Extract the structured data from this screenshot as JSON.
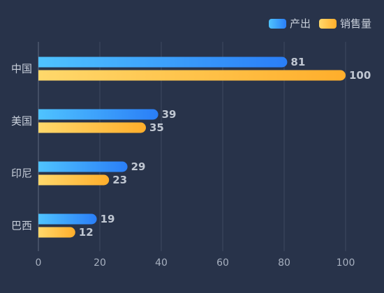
{
  "chart_data": {
    "type": "bar",
    "orientation": "horizontal",
    "categories": [
      "中国",
      "美国",
      "印尼",
      "巴西"
    ],
    "series": [
      {
        "name": "产出",
        "values": [
          81,
          39,
          29,
          19
        ],
        "gradient": [
          "#4fc3ff",
          "#2a7ef7"
        ]
      },
      {
        "name": "销售量",
        "values": [
          100,
          35,
          23,
          12
        ],
        "gradient": [
          "#ffd86b",
          "#ffae2b"
        ]
      }
    ],
    "xlim": [
      0,
      100
    ],
    "xticks": [
      0,
      20,
      40,
      60,
      80,
      100
    ],
    "grid": true,
    "legend": "top-right",
    "title": "",
    "xlabel": "",
    "ylabel": ""
  }
}
